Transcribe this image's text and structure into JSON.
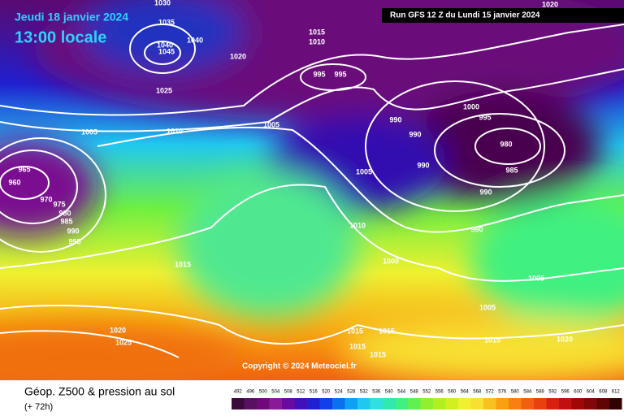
{
  "map": {
    "date": "Jeudi 18 janvier 2024",
    "time": "13:00 locale",
    "run": "Run GFS 12 Z du Lundi 15 janvier 2024",
    "copyright": "Copyright © 2024 Meteociel.fr",
    "caption": "Géop. Z500 & pression au sol",
    "lead": "(+ 72h)",
    "isobar_labels": [
      1030,
      1035,
      1040,
      1040,
      1045,
      1020,
      1015,
      1010,
      1025,
      995,
      995,
      1005,
      1010,
      1005,
      1000,
      995,
      990,
      990,
      980,
      990,
      985,
      1005,
      965,
      960,
      970,
      975,
      980,
      985,
      990,
      995,
      990,
      1010,
      990,
      1015,
      1000,
      1005,
      1005,
      1020,
      1025,
      1015,
      1015,
      1015,
      1020,
      1015,
      1015,
      1020
    ],
    "legend": {
      "values": [
        492,
        496,
        500,
        504,
        508,
        512,
        516,
        520,
        524,
        528,
        532,
        536,
        540,
        544,
        548,
        552,
        556,
        560,
        564,
        568,
        572,
        576,
        580,
        584,
        588,
        592,
        596,
        600,
        604,
        608,
        612
      ],
      "colors": [
        "#3a0a3a",
        "#5a1060",
        "#700a7a",
        "#8a1a96",
        "#6a0aa0",
        "#4010b8",
        "#2020d0",
        "#1040e8",
        "#0a70f0",
        "#10a0f0",
        "#20c8f0",
        "#30e0e0",
        "#30e8b0",
        "#40f080",
        "#60f050",
        "#90f030",
        "#b0f020",
        "#d0f020",
        "#f0f030",
        "#f8e030",
        "#f8c020",
        "#f8a010",
        "#f88010",
        "#f06010",
        "#e84010",
        "#d82010",
        "#c01010",
        "#a00808",
        "#800808",
        "#600404",
        "#300202"
      ]
    }
  }
}
